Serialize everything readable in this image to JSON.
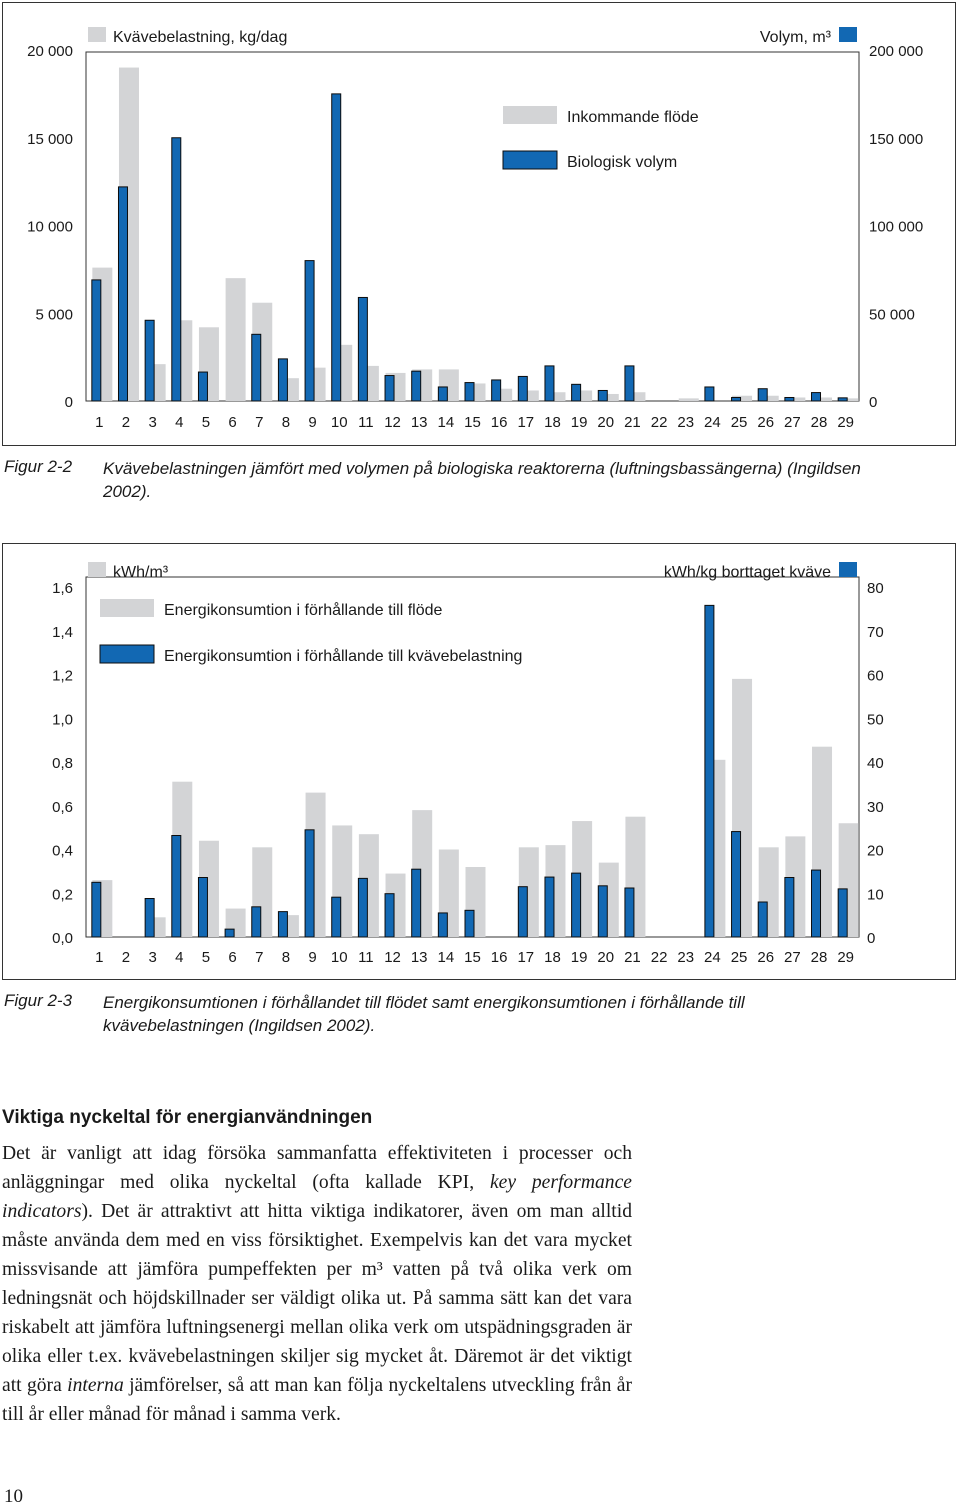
{
  "chart_data": [
    {
      "type": "bar",
      "categories": [
        "1",
        "2",
        "3",
        "4",
        "5",
        "6",
        "7",
        "8",
        "9",
        "10",
        "11",
        "12",
        "13",
        "14",
        "15",
        "16",
        "17",
        "18",
        "19",
        "20",
        "21",
        "22",
        "23",
        "24",
        "25",
        "26",
        "27",
        "28",
        "29"
      ],
      "left_axis": {
        "label": "Kvävebelastning, kg/dag",
        "ticks": [
          "20 000",
          "15 000",
          "10 000",
          "5 000",
          "0"
        ],
        "range": [
          0,
          20000
        ]
      },
      "right_axis": {
        "label": "Volym, m³",
        "ticks": [
          "200 000",
          "150 000",
          "100 000",
          "50 000",
          "0"
        ],
        "range": [
          0,
          200000
        ]
      },
      "series": [
        {
          "name": "Inkommande flöde",
          "axis": "left",
          "color": "#d3d4d6",
          "values": [
            7600,
            19000,
            2100,
            4600,
            4200,
            7000,
            5600,
            1300,
            1900,
            3200,
            2000,
            1600,
            1800,
            1800,
            1000,
            700,
            600,
            500,
            600,
            400,
            500,
            0,
            150,
            0,
            300,
            300,
            200,
            200,
            150
          ]
        },
        {
          "name": "Biologisk volym",
          "axis": "right",
          "color": "#1268b3",
          "values": [
            69000,
            122000,
            46000,
            150000,
            16500,
            0,
            38000,
            24000,
            80000,
            175000,
            59000,
            14500,
            17000,
            8000,
            10500,
            12000,
            14000,
            20000,
            9500,
            6000,
            20000,
            0,
            0,
            8000,
            2000,
            7000,
            2000,
            4800,
            1800
          ]
        }
      ],
      "legend": {
        "series_labels": [
          "Inkommande flöde",
          "Biologisk volym"
        ],
        "placement": "top-center"
      },
      "grid": false
    },
    {
      "type": "bar",
      "categories": [
        "1",
        "2",
        "3",
        "4",
        "5",
        "6",
        "7",
        "8",
        "9",
        "10",
        "11",
        "12",
        "13",
        "14",
        "15",
        "16",
        "17",
        "18",
        "19",
        "20",
        "21",
        "22",
        "23",
        "24",
        "25",
        "26",
        "27",
        "28",
        "29"
      ],
      "left_axis": {
        "label": "kWh/m³",
        "ticks": [
          "1,6",
          "1,4",
          "1,2",
          "1,0",
          "0,8",
          "0,6",
          "0,4",
          "0,2",
          "0,0"
        ],
        "range": [
          0,
          1.6
        ]
      },
      "right_axis": {
        "label": "kWh/kg borttaget kväve",
        "ticks": [
          "80",
          "70",
          "60",
          "50",
          "40",
          "30",
          "20",
          "10",
          "0"
        ],
        "range": [
          0,
          80
        ]
      },
      "series": [
        {
          "name": "Energikonsumtion i förhållande till flöde",
          "axis": "left",
          "color": "#d3d4d6",
          "values": [
            0.26,
            0,
            0.09,
            0.71,
            0.44,
            0.13,
            0.41,
            0.1,
            0.66,
            0.51,
            0.47,
            0.29,
            0.58,
            0.4,
            0.32,
            0,
            0.41,
            0.42,
            0.53,
            0.34,
            0.55,
            0,
            0,
            0.81,
            1.18,
            0.41,
            0.46,
            0.87,
            0.52
          ]
        },
        {
          "name": "Energikonsumtion i förhållande till kvävebelastning",
          "axis": "right",
          "color": "#1268b3",
          "values": [
            12.5,
            0,
            8.8,
            23.2,
            13.6,
            1.8,
            6.9,
            5.8,
            24.5,
            9.1,
            13.4,
            9.9,
            15.5,
            5.5,
            6.1,
            0,
            11.5,
            13.7,
            14.6,
            11.7,
            11.2,
            0,
            0,
            75.8,
            24.1,
            8.0,
            13.6,
            15.3,
            11.0
          ]
        }
      ],
      "legend": {
        "series_labels": [
          "Energikonsumtion i förhållande till flöde",
          "Energikonsumtion i förhållande till kvävebelastning"
        ],
        "placement": "top-center"
      },
      "grid": false
    }
  ],
  "captions": [
    {
      "label": "Figur 2-2",
      "text": "Kvävebelastningen jämfört med volymen på biologiska reaktorerna (luftningsbassängerna) (Ingildsen 2002)."
    },
    {
      "label": "Figur 2-3",
      "text": "Energikonsumtionen i förhållandet till flödet samt energikonsumtionen i förhållande till kvävebelastningen (Ingildsen 2002)."
    }
  ],
  "article": {
    "heading": "Viktiga nyckeltal för energianvändningen",
    "p_part1": "Det är vanligt att idag försöka sammanfatta effektiviteten i processer och anläggningar med olika nyckeltal (ofta kallade KPI, ",
    "p_em1": "key performance indicators",
    "p_part2": "). Det är attraktivt att hitta viktiga indikatorer, även om man alltid måste använda dem med en viss försiktighet. Exempelvis kan det vara mycket missvisande att jämföra pumpeffekten per m³ vatten på två olika verk om ledningsnät och höjdskillnader ser väldigt olika ut. På samma sätt kan det vara riskabelt att jämföra luftningsenergi mellan olika verk om utspädningsgraden är olika eller t.ex. kvävebelastningen skiljer sig mycket åt. Däremot är det viktigt att göra ",
    "p_em2": "interna",
    "p_part3": " jämförelser, så att man kan följa nyckeltalens utveckling från år till år eller månad för månad i samma verk."
  },
  "page_number": "10"
}
